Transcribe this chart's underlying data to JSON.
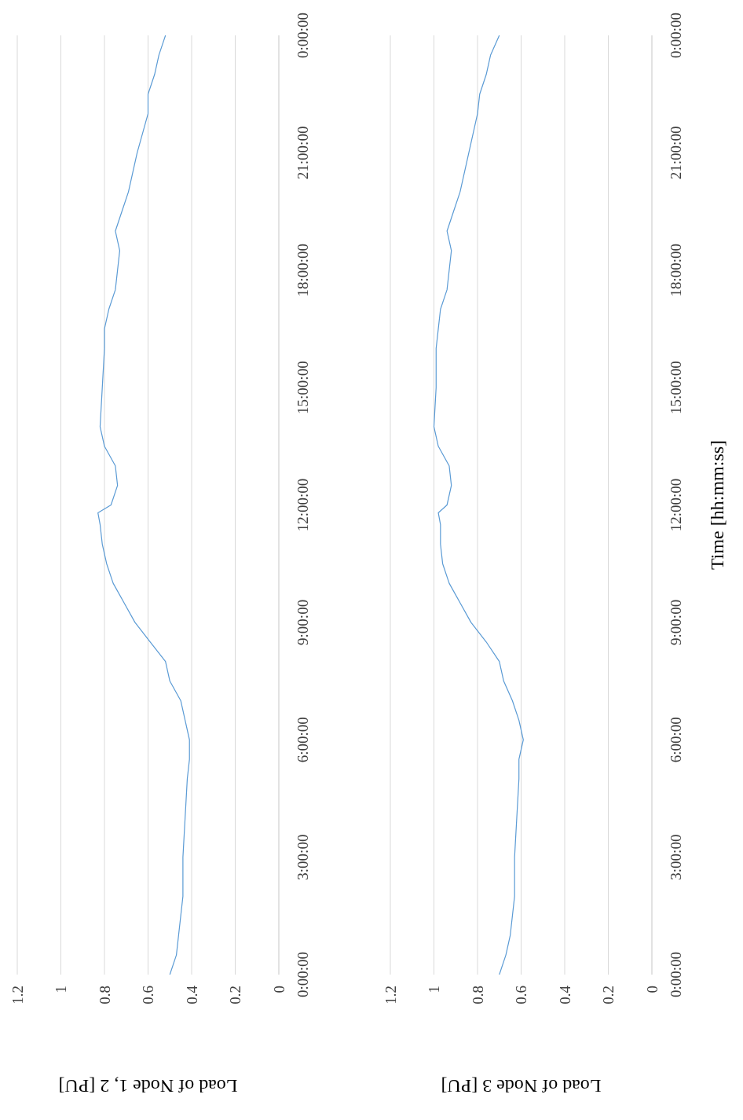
{
  "chart_data": [
    {
      "type": "line",
      "orientation": "horizontal",
      "xlabel": "Load of Node 1, 2 [PU]",
      "x": [
        "2000-01-01T00:00",
        "2000-01-01T00:30",
        "2000-01-01T01:00",
        "2000-01-01T02:00",
        "2000-01-01T03:00",
        "2000-01-01T04:00",
        "2000-01-01T05:00",
        "2000-01-01T05:30",
        "2000-01-01T06:00",
        "2000-01-01T06:30",
        "2000-01-01T07:00",
        "2000-01-01T07:30",
        "2000-01-01T08:00",
        "2000-01-01T08:30",
        "2000-01-01T09:00",
        "2000-01-01T09:30",
        "2000-01-01T10:00",
        "2000-01-01T10:30",
        "2000-01-01T11:00",
        "2000-01-01T11:30",
        "2000-01-01T11:48",
        "2000-01-01T12:00",
        "2000-01-01T12:30",
        "2000-01-01T13:00",
        "2000-01-01T13:30",
        "2000-01-01T14:00",
        "2000-01-01T15:00",
        "2000-01-01T16:00",
        "2000-01-01T16:30",
        "2000-01-01T17:00",
        "2000-01-01T17:30",
        "2000-01-01T18:00",
        "2000-01-01T18:30",
        "2000-01-01T19:00",
        "2000-01-01T19:30",
        "2000-01-01T20:00",
        "2000-01-01T21:00",
        "2000-01-01T22:00",
        "2000-01-01T22:30",
        "2000-01-01T23:00",
        "2000-01-01T23:30",
        "2000-01-02T00:00"
      ],
      "series": [
        {
          "color": "#5b9bd5",
          "values": [
            0.5,
            0.47,
            0.46,
            0.44,
            0.44,
            0.43,
            0.42,
            0.41,
            0.41,
            0.43,
            0.45,
            0.5,
            0.52,
            0.59,
            0.66,
            0.71,
            0.76,
            0.79,
            0.81,
            0.82,
            0.83,
            0.77,
            0.74,
            0.75,
            0.8,
            0.82,
            0.81,
            0.8,
            0.8,
            0.78,
            0.75,
            0.74,
            0.73,
            0.75,
            0.72,
            0.69,
            0.65,
            0.6,
            0.6,
            0.57,
            0.55,
            0.52
          ]
        }
      ],
      "ylim": [
        "2000-01-01T00:00",
        "2000-01-02T00:00"
      ],
      "yticks": [
        {
          "value": "2000-01-01T00:00",
          "label": "0:00:00"
        },
        {
          "value": "2000-01-01T03:00",
          "label": "3:00:00"
        },
        {
          "value": "2000-01-01T06:00",
          "label": "6:00:00"
        },
        {
          "value": "2000-01-01T09:00",
          "label": "9:00:00"
        },
        {
          "value": "2000-01-01T12:00",
          "label": "12:00:00"
        },
        {
          "value": "2000-01-01T15:00",
          "label": "15:00:00"
        },
        {
          "value": "2000-01-01T18:00",
          "label": "18:00:00"
        },
        {
          "value": "2000-01-01T21:00",
          "label": "21:00:00"
        },
        {
          "value": "2000-01-02T00:00",
          "label": "0:00:00"
        }
      ],
      "xlim": [
        1.2,
        0
      ],
      "xticks": [
        0,
        0.2,
        0.4,
        0.6,
        0.8,
        1,
        1.2
      ],
      "grid": "x"
    },
    {
      "type": "line",
      "orientation": "horizontal",
      "xlabel": "Load of Node 3 [PU]",
      "ylabel": "Time [hh:mm:ss]",
      "x": [
        "2000-01-01T00:00",
        "2000-01-01T00:30",
        "2000-01-01T01:00",
        "2000-01-01T02:00",
        "2000-01-01T03:00",
        "2000-01-01T04:00",
        "2000-01-01T05:00",
        "2000-01-01T05:30",
        "2000-01-01T06:00",
        "2000-01-01T06:30",
        "2000-01-01T07:00",
        "2000-01-01T07:30",
        "2000-01-01T08:00",
        "2000-01-01T08:30",
        "2000-01-01T09:00",
        "2000-01-01T09:30",
        "2000-01-01T10:00",
        "2000-01-01T10:30",
        "2000-01-01T11:00",
        "2000-01-01T11:30",
        "2000-01-01T11:48",
        "2000-01-01T12:00",
        "2000-01-01T12:30",
        "2000-01-01T13:00",
        "2000-01-01T13:30",
        "2000-01-01T14:00",
        "2000-01-01T15:00",
        "2000-01-01T16:00",
        "2000-01-01T16:30",
        "2000-01-01T17:00",
        "2000-01-01T17:30",
        "2000-01-01T18:00",
        "2000-01-01T18:30",
        "2000-01-01T19:00",
        "2000-01-01T19:30",
        "2000-01-01T20:00",
        "2000-01-01T21:00",
        "2000-01-01T22:00",
        "2000-01-01T22:30",
        "2000-01-01T23:00",
        "2000-01-01T23:30",
        "2000-01-02T00:00"
      ],
      "series": [
        {
          "color": "#5b9bd5",
          "values": [
            0.7,
            0.67,
            0.65,
            0.63,
            0.63,
            0.62,
            0.61,
            0.61,
            0.59,
            0.61,
            0.64,
            0.68,
            0.7,
            0.76,
            0.83,
            0.88,
            0.93,
            0.96,
            0.97,
            0.97,
            0.98,
            0.94,
            0.92,
            0.93,
            0.98,
            1.0,
            0.99,
            0.99,
            0.98,
            0.97,
            0.94,
            0.93,
            0.92,
            0.94,
            0.91,
            0.88,
            0.84,
            0.8,
            0.79,
            0.76,
            0.74,
            0.7
          ]
        }
      ],
      "ylim": [
        "2000-01-01T00:00",
        "2000-01-02T00:00"
      ],
      "yticks": [
        {
          "value": "2000-01-01T00:00",
          "label": "0:00:00"
        },
        {
          "value": "2000-01-01T03:00",
          "label": "3:00:00"
        },
        {
          "value": "2000-01-01T06:00",
          "label": "6:00:00"
        },
        {
          "value": "2000-01-01T09:00",
          "label": "9:00:00"
        },
        {
          "value": "2000-01-01T12:00",
          "label": "12:00:00"
        },
        {
          "value": "2000-01-01T15:00",
          "label": "15:00:00"
        },
        {
          "value": "2000-01-01T18:00",
          "label": "18:00:00"
        },
        {
          "value": "2000-01-01T21:00",
          "label": "21:00:00"
        },
        {
          "value": "2000-01-02T00:00",
          "label": "0:00:00"
        }
      ],
      "xlim": [
        1.2,
        0
      ],
      "xticks": [
        0,
        0.2,
        0.4,
        0.6,
        0.8,
        1,
        1.2
      ],
      "grid": "x"
    }
  ]
}
